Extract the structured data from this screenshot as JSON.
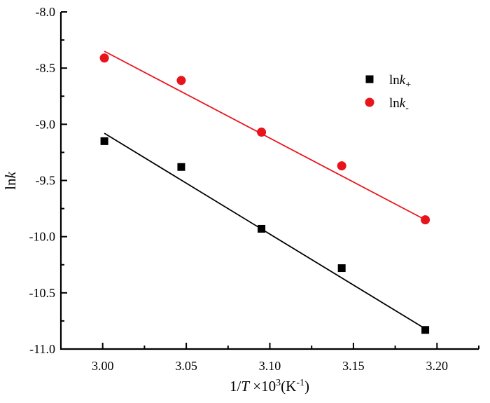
{
  "chart_data": {
    "type": "scatter",
    "title": "",
    "xlabel": {
      "prefix": "1/",
      "italic": "T",
      "middle": " ×10",
      "sup": "3",
      "after": "(K",
      "sup2": "-1",
      "end": ")"
    },
    "ylabel": {
      "plain": "ln",
      "italic": "k"
    },
    "xlim": [
      2.975,
      3.225
    ],
    "ylim": [
      -11.0,
      -8.0
    ],
    "x_ticks": [
      3.0,
      3.05,
      3.1,
      3.15,
      3.2
    ],
    "x_tick_labels": [
      "3.00",
      "3.05",
      "3.10",
      "3.15",
      "3.20"
    ],
    "x_minor_ticks": [
      3.025,
      3.075,
      3.125,
      3.175,
      3.225
    ],
    "y_ticks": [
      -8.0,
      -8.5,
      -9.0,
      -9.5,
      -10.0,
      -10.5,
      -11.0
    ],
    "y_tick_labels": [
      "-8.0",
      "-8.5",
      "-9.0",
      "-9.5",
      "-10.0",
      "-10.5",
      "-11.0"
    ],
    "y_minor_ticks": [
      -8.25,
      -8.75,
      -9.25,
      -9.75,
      -10.25,
      -10.75
    ],
    "grid": false,
    "legend_position": "top-right",
    "series": [
      {
        "name": "lnk+",
        "legend_plain": "ln",
        "legend_italic": "k",
        "legend_sub": "+",
        "color": "#000000",
        "marker": "square",
        "x": [
          3.001,
          3.047,
          3.095,
          3.143,
          3.193
        ],
        "y": [
          -9.15,
          -9.38,
          -9.93,
          -10.28,
          -10.83
        ],
        "fit_line": {
          "x": [
            3.001,
            3.193
          ],
          "y": [
            -9.08,
            -10.82
          ]
        }
      },
      {
        "name": "lnk-",
        "legend_plain": "ln",
        "legend_italic": "k",
        "legend_sub": "-",
        "color": "#e8141b",
        "marker": "circle",
        "x": [
          3.001,
          3.047,
          3.095,
          3.143,
          3.193
        ],
        "y": [
          -8.41,
          -8.61,
          -9.07,
          -9.37,
          -9.85
        ],
        "fit_line": {
          "x": [
            3.001,
            3.193
          ],
          "y": [
            -8.35,
            -9.85
          ]
        }
      }
    ]
  }
}
